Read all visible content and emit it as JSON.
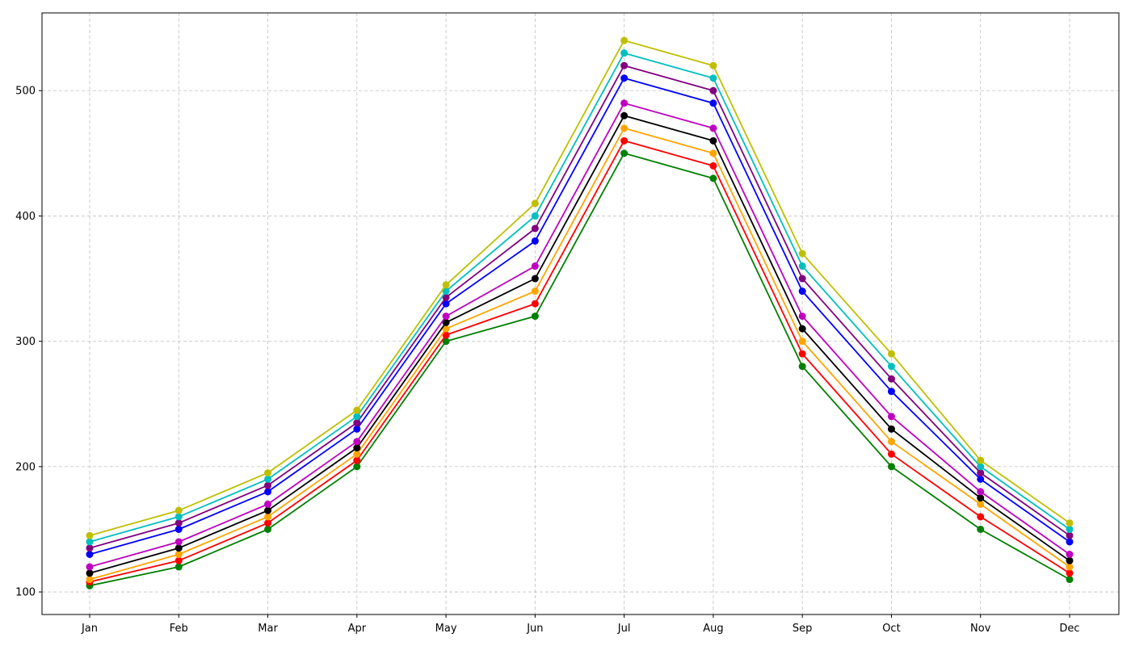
{
  "chart_data": {
    "type": "line",
    "title": "",
    "xlabel": "",
    "ylabel": "",
    "categories": [
      "Jan",
      "Feb",
      "Mar",
      "Apr",
      "May",
      "Jun",
      "Jul",
      "Aug",
      "Sep",
      "Oct",
      "Nov",
      "Dec"
    ],
    "ylim": [
      82,
      562
    ],
    "yticks": [
      100,
      200,
      300,
      400,
      500
    ],
    "grid": true,
    "marker": "circle",
    "series": [
      {
        "color": "#008000",
        "values": [
          105,
          120,
          150,
          200,
          300,
          320,
          450,
          430,
          280,
          200,
          150,
          110
        ]
      },
      {
        "color": "#ff0000",
        "values": [
          108,
          125,
          155,
          205,
          305,
          330,
          460,
          440,
          290,
          210,
          160,
          115
        ]
      },
      {
        "color": "#ffa500",
        "values": [
          110,
          130,
          160,
          210,
          310,
          340,
          470,
          450,
          300,
          220,
          170,
          120
        ]
      },
      {
        "color": "#000000",
        "values": [
          115,
          135,
          165,
          215,
          315,
          350,
          480,
          460,
          310,
          230,
          175,
          125
        ]
      },
      {
        "color": "#bf00bf",
        "values": [
          120,
          140,
          170,
          220,
          320,
          360,
          490,
          470,
          320,
          240,
          180,
          130
        ]
      },
      {
        "color": "#0000ff",
        "values": [
          130,
          150,
          180,
          230,
          330,
          380,
          510,
          490,
          340,
          260,
          190,
          140
        ]
      },
      {
        "color": "#800080",
        "values": [
          135,
          155,
          185,
          235,
          335,
          390,
          520,
          500,
          350,
          270,
          195,
          145
        ]
      },
      {
        "color": "#00bfbf",
        "values": [
          140,
          160,
          190,
          240,
          340,
          400,
          530,
          510,
          360,
          280,
          200,
          150
        ]
      },
      {
        "color": "#bfbf00",
        "values": [
          145,
          165,
          195,
          245,
          345,
          410,
          540,
          520,
          370,
          290,
          205,
          155
        ]
      }
    ]
  }
}
